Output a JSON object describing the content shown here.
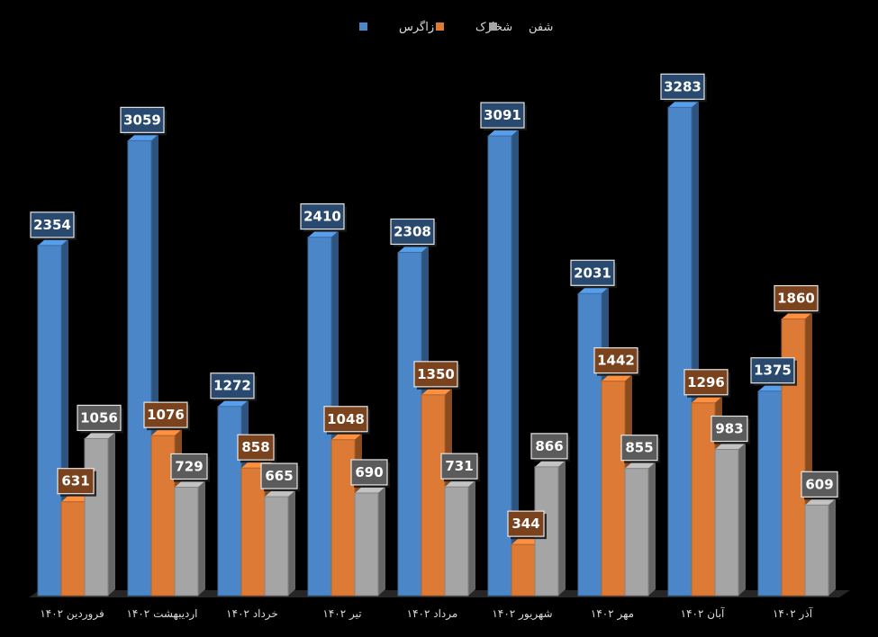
{
  "chart_data": {
    "type": "bar",
    "title": "",
    "xlabel": "",
    "ylabel": "",
    "ylim": [
      0,
      3500
    ],
    "grid": false,
    "legend_position": "top",
    "categories": [
      "فروردین ۱۴۰۲",
      "اردیبهشت ۱۴۰۲",
      "خرداد ۱۴۰۲",
      "تیر ۱۴۰۲",
      "مرداد ۱۴۰۲",
      "شهریور ۱۴۰۲",
      "مهر ۱۴۰۲",
      "آبان ۱۴۰۲",
      "آذر ۱۴۰۲"
    ],
    "series": [
      {
        "name": "زاگرس",
        "color": "#4a86c8",
        "values": [
          2354,
          3059,
          1272,
          2410,
          2308,
          3091,
          2031,
          3283,
          1375
        ]
      },
      {
        "name": "شخارک",
        "color": "#dd7a35",
        "values": [
          631,
          1076,
          858,
          1048,
          1350,
          344,
          1442,
          1296,
          1860
        ]
      },
      {
        "name": "شفن",
        "color": "#a5a5a5",
        "values": [
          1056,
          729,
          665,
          690,
          731,
          866,
          855,
          983,
          609
        ]
      }
    ]
  }
}
